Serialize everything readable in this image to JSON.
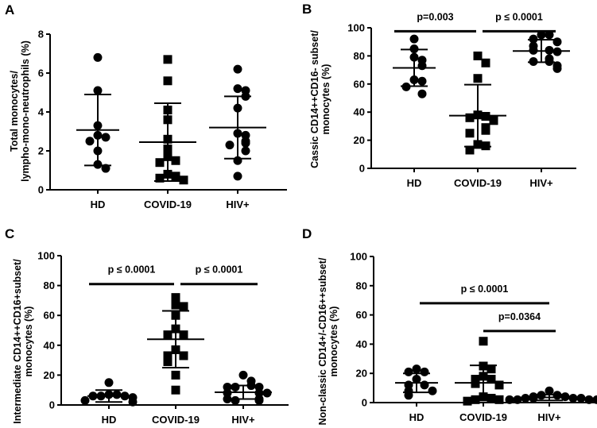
{
  "chart_data": [
    {
      "panel": "A",
      "type": "scatter",
      "ylabel": [
        "Total monocytes/",
        "lympho-mono-neutrophils (%)"
      ],
      "ylim": [
        0,
        8
      ],
      "yticks": [
        "0",
        "2",
        "4",
        "6",
        "8"
      ],
      "categories": [
        "HD",
        "COVID-19",
        "HIV+"
      ],
      "markers": [
        "circle",
        "square",
        "circle"
      ],
      "groups": [
        {
          "values": [
            6.8,
            5.1,
            3.3,
            2.8,
            2.7,
            2.5,
            2.0,
            1.3,
            1.1
          ],
          "mean": 3.07,
          "upper": 4.9,
          "lower": 1.25
        },
        {
          "values": [
            6.7,
            5.6,
            4.1,
            3.6,
            2.6,
            2.1,
            1.7,
            1.5,
            1.4,
            0.8,
            0.7,
            0.6,
            0.5
          ],
          "mean": 2.45,
          "upper": 4.45,
          "lower": 0.45
        },
        {
          "values": [
            6.2,
            5.2,
            5.1,
            4.8,
            4.2,
            2.9,
            2.8,
            2.5,
            2.4,
            2.3,
            2.0,
            1.5,
            0.7
          ],
          "mean": 3.2,
          "upper": 4.8,
          "lower": 1.6
        }
      ],
      "comparisons": []
    },
    {
      "panel": "B",
      "type": "scatter",
      "ylabel": [
        "Cassic CD14++CD16- subset/",
        "monocytes (%)"
      ],
      "ylim": [
        0,
        100
      ],
      "yticks": [
        "0",
        "20",
        "40",
        "60",
        "80",
        "100"
      ],
      "categories": [
        "HD",
        "COVID-19",
        "HIV+"
      ],
      "markers": [
        "circle",
        "square",
        "circle"
      ],
      "groups": [
        {
          "values": [
            92,
            85,
            79,
            77,
            73,
            63,
            62,
            58,
            53
          ],
          "mean": 71.5,
          "upper": 84.5,
          "lower": 58.5
        },
        {
          "values": [
            80,
            75,
            64,
            38,
            37,
            36,
            34,
            29,
            27,
            25,
            17,
            16,
            13
          ],
          "mean": 37.5,
          "upper": 59.5,
          "lower": 15.5
        },
        {
          "values": [
            95,
            95,
            92,
            90,
            87,
            84,
            84,
            83,
            78,
            76,
            76,
            73,
            71
          ],
          "mean": 83.5,
          "upper": 91.5,
          "lower": 75.5
        }
      ],
      "comparisons": [
        {
          "from": 0,
          "to": 1,
          "level": 97.5,
          "label": "p=0.003"
        },
        {
          "from": 1,
          "to": 2,
          "level": 97.5,
          "label": "p ≤ 0.0001"
        }
      ]
    },
    {
      "panel": "C",
      "type": "scatter",
      "ylabel": [
        "Intermediate CD14++CD16+subset/",
        "monocytes (%)"
      ],
      "ylim": [
        0,
        100
      ],
      "yticks": [
        "0",
        "20",
        "40",
        "60",
        "80",
        "100"
      ],
      "categories": [
        "HD",
        "COVID-19",
        "HIV+"
      ],
      "markers": [
        "circle",
        "square",
        "circle"
      ],
      "groups": [
        {
          "values": [
            15,
            7,
            7,
            6,
            6,
            6,
            5,
            3,
            2
          ],
          "mean": 6,
          "upper": 10,
          "lower": 2
        },
        {
          "values": [
            72,
            67,
            66,
            60,
            51,
            47,
            47,
            37,
            33,
            33,
            29,
            20,
            10
          ],
          "mean": 44,
          "upper": 63,
          "lower": 25
        },
        {
          "values": [
            20,
            16,
            13,
            12,
            12,
            12,
            8,
            8,
            8,
            4,
            4,
            3,
            3
          ],
          "mean": 8.5,
          "upper": 13,
          "lower": 4
        }
      ],
      "comparisons": [
        {
          "from": 0,
          "to": 1,
          "level": 81,
          "label": "p ≤ 0.0001"
        },
        {
          "from": 1,
          "to": 2,
          "level": 81,
          "label": "p ≤ 0.0001"
        }
      ]
    },
    {
      "panel": "D",
      "type": "scatter",
      "ylabel": [
        "Non-classic CD14+/-CD16++subset/",
        "monocytes (%)"
      ],
      "ylim": [
        0,
        100
      ],
      "yticks": [
        "0",
        "20",
        "40",
        "60",
        "80",
        "100"
      ],
      "categories": [
        "HD",
        "COVID-19",
        "HIV+"
      ],
      "markers": [
        "circle",
        "square",
        "circle"
      ],
      "groups": [
        {
          "values": [
            23,
            21,
            21,
            16,
            12,
            12,
            8,
            8,
            5
          ],
          "mean": 13.5,
          "upper": 20,
          "lower": 7
        },
        {
          "values": [
            42,
            25,
            23,
            18,
            16,
            16,
            13,
            12,
            4,
            3,
            2,
            2,
            1
          ],
          "mean": 13.5,
          "upper": 25.5,
          "lower": 1.5
        },
        {
          "values": [
            8,
            5,
            5,
            4,
            4,
            3,
            3,
            3,
            3,
            2,
            2,
            2,
            2
          ],
          "mean": 3.5,
          "upper": 5.5,
          "lower": 1.5
        }
      ],
      "comparisons": [
        {
          "from": 0,
          "to": 2,
          "level": 68,
          "label": "p ≤ 0.0001"
        },
        {
          "from": 1,
          "to": 2,
          "level": 49,
          "label": "p=0.0364"
        }
      ]
    }
  ]
}
